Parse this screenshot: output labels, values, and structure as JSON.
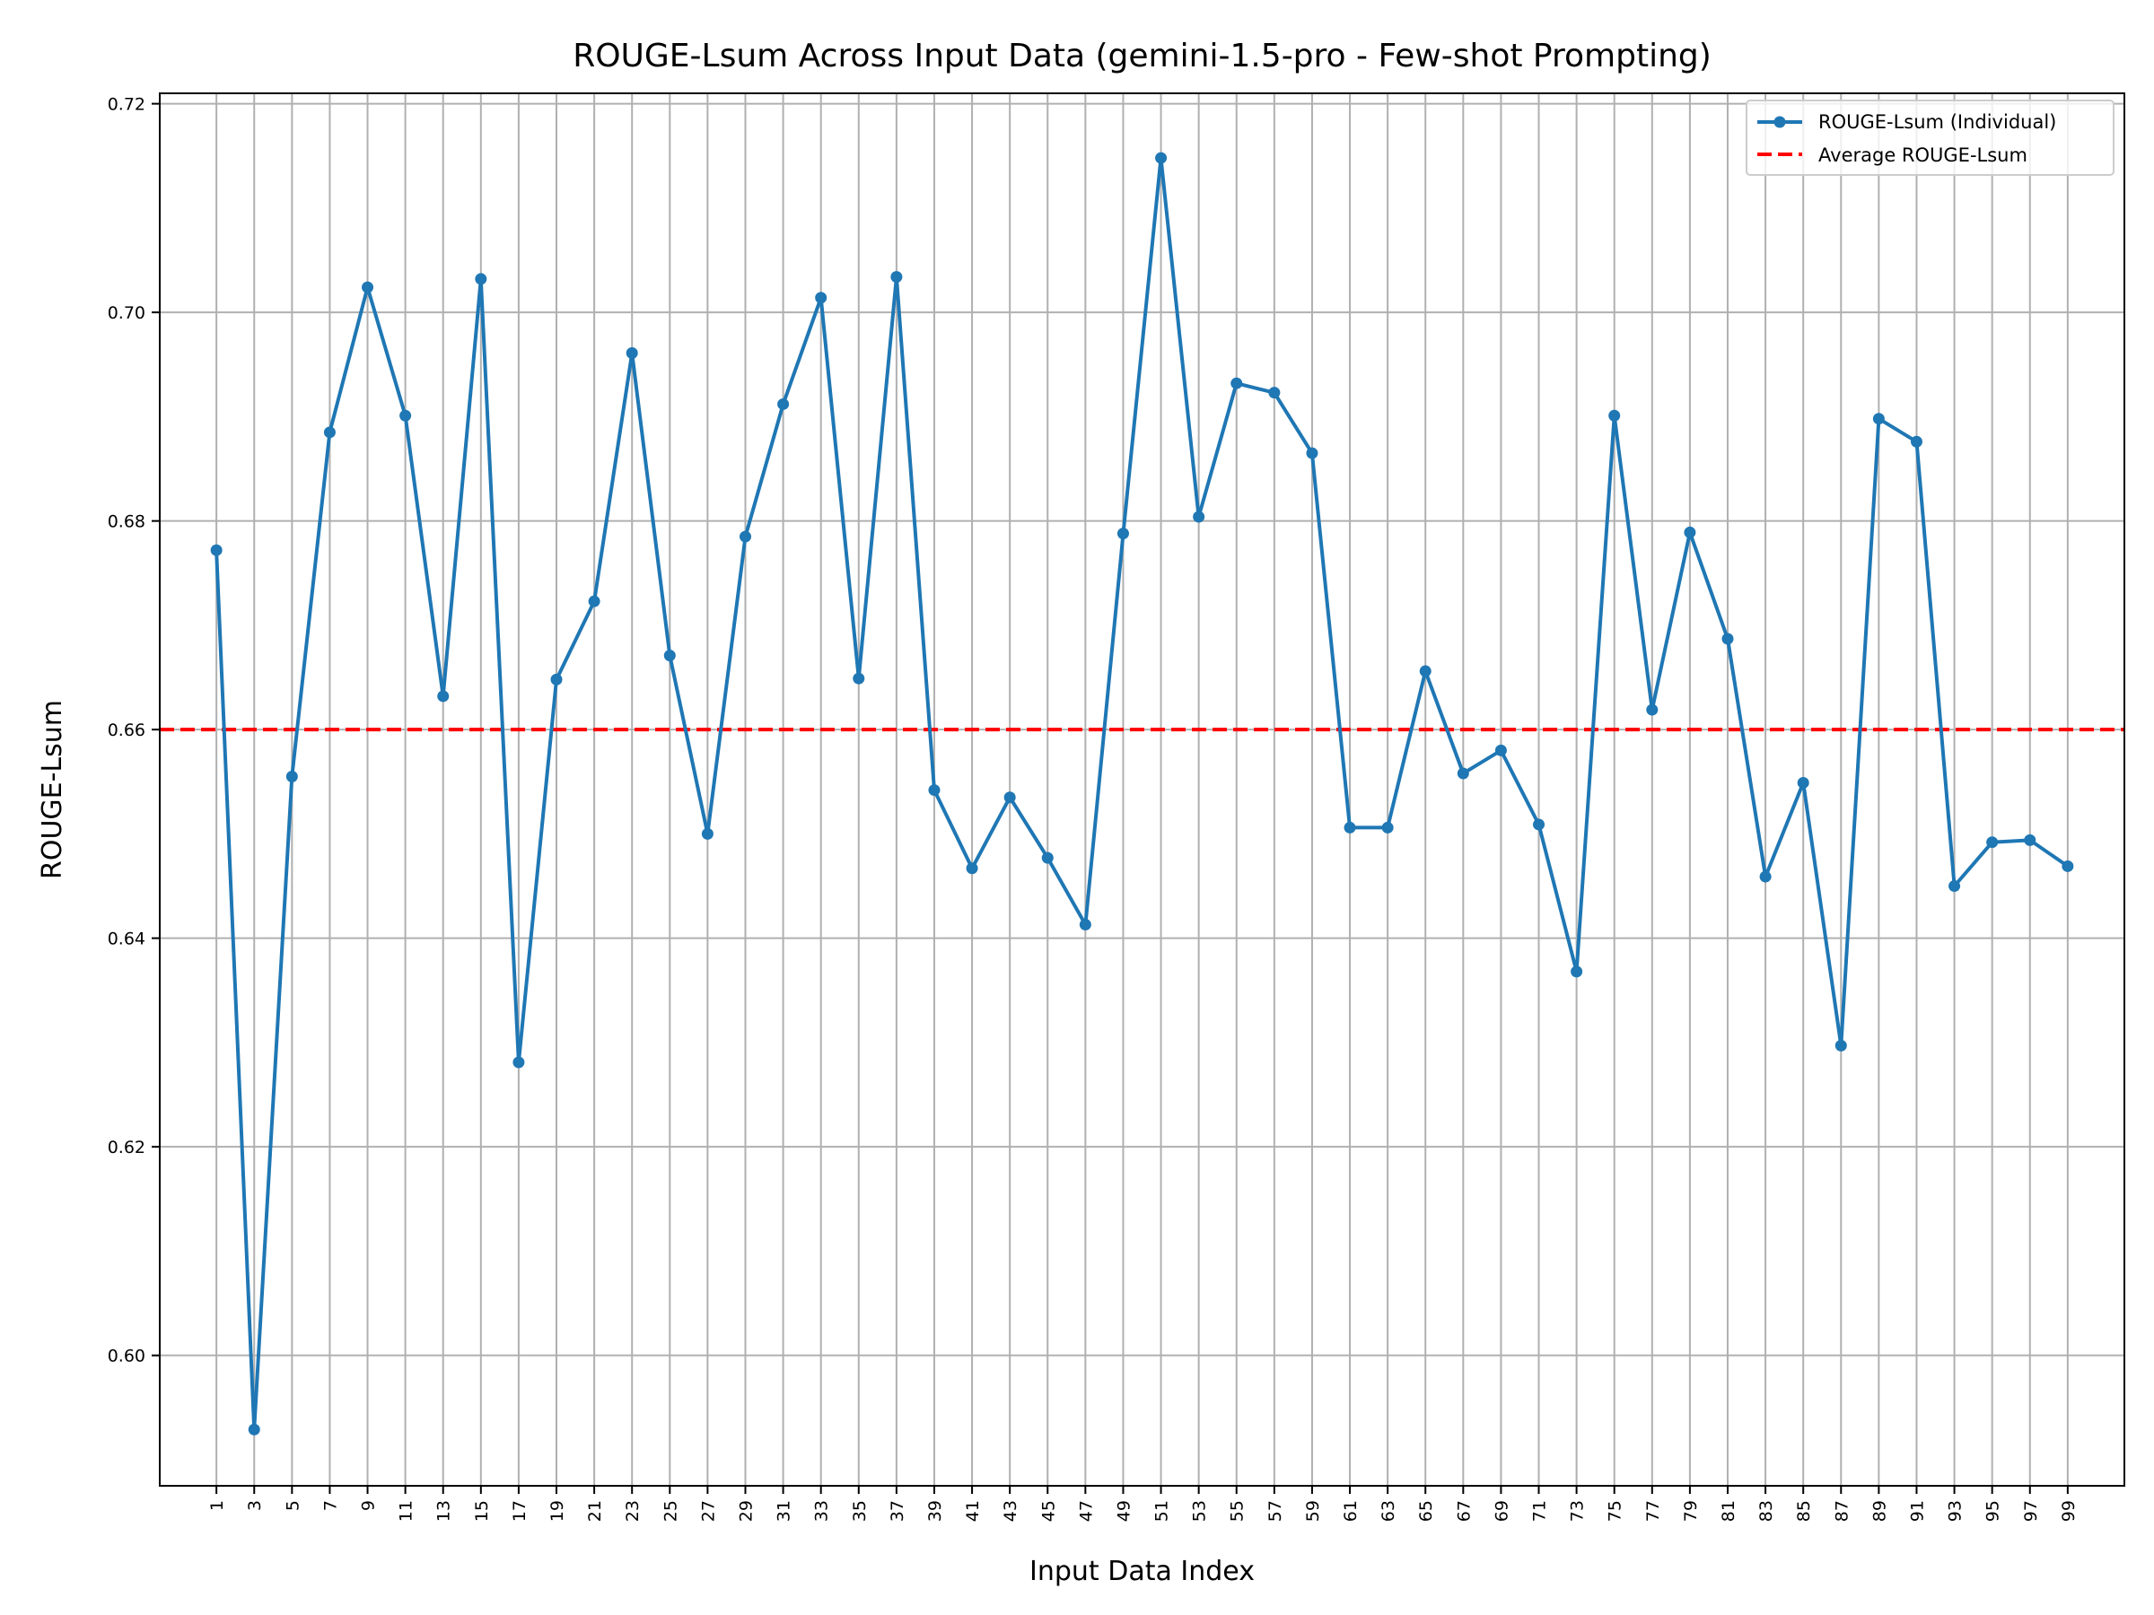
{
  "chart_data": {
    "type": "line",
    "title": "ROUGE-Lsum Across Input Data (gemini-1.5-pro - Few-shot Prompting)",
    "xlabel": "Input Data Index",
    "ylabel": "ROUGE-Lsum",
    "xlim": [
      -2,
      102
    ],
    "ylim": [
      0.5875,
      0.721
    ],
    "x_ticks": [
      1,
      3,
      5,
      7,
      9,
      11,
      13,
      15,
      17,
      19,
      21,
      23,
      25,
      27,
      29,
      31,
      33,
      35,
      37,
      39,
      41,
      43,
      45,
      47,
      49,
      51,
      53,
      55,
      57,
      59,
      61,
      63,
      65,
      67,
      69,
      71,
      73,
      75,
      77,
      79,
      81,
      83,
      85,
      87,
      89,
      91,
      93,
      95,
      97,
      99
    ],
    "y_ticks": [
      0.6,
      0.62,
      0.64,
      0.66,
      0.68,
      0.7,
      0.72
    ],
    "y_tick_labels": [
      "0.60",
      "0.62",
      "0.64",
      "0.66",
      "0.68",
      "0.70",
      "0.72"
    ],
    "grid": true,
    "legend_position": "top-right",
    "series": [
      {
        "name": "ROUGE-Lsum (Individual)",
        "color": "#1f77b4",
        "x": [
          1,
          3,
          5,
          7,
          9,
          11,
          13,
          15,
          17,
          19,
          21,
          23,
          25,
          27,
          29,
          31,
          33,
          35,
          37,
          39,
          41,
          43,
          45,
          47,
          49,
          51,
          53,
          55,
          57,
          59,
          61,
          63,
          65,
          67,
          69,
          71,
          73,
          75,
          77,
          79,
          81,
          83,
          85,
          87,
          89,
          91,
          93,
          95,
          97,
          99
        ],
        "y": [
          0.6772,
          0.5929,
          0.6555,
          0.6885,
          0.7024,
          0.6901,
          0.6632,
          0.7032,
          0.6281,
          0.6648,
          0.6723,
          0.6961,
          0.6671,
          0.65,
          0.6785,
          0.6912,
          0.7014,
          0.6649,
          0.7034,
          0.6542,
          0.6467,
          0.6535,
          0.6477,
          0.6413,
          0.6788,
          0.7148,
          0.6804,
          0.6932,
          0.6923,
          0.6865,
          0.6506,
          0.6506,
          0.6656,
          0.6558,
          0.658,
          0.6509,
          0.6368,
          0.6901,
          0.6619,
          0.6789,
          0.6687,
          0.6459,
          0.6549,
          0.6297,
          0.6898,
          0.6876,
          0.645,
          0.6492,
          0.6494,
          0.6469
        ]
      },
      {
        "name": "Average ROUGE-Lsum",
        "color": "#ff0000",
        "style": "dashed",
        "y": 0.66
      }
    ]
  }
}
